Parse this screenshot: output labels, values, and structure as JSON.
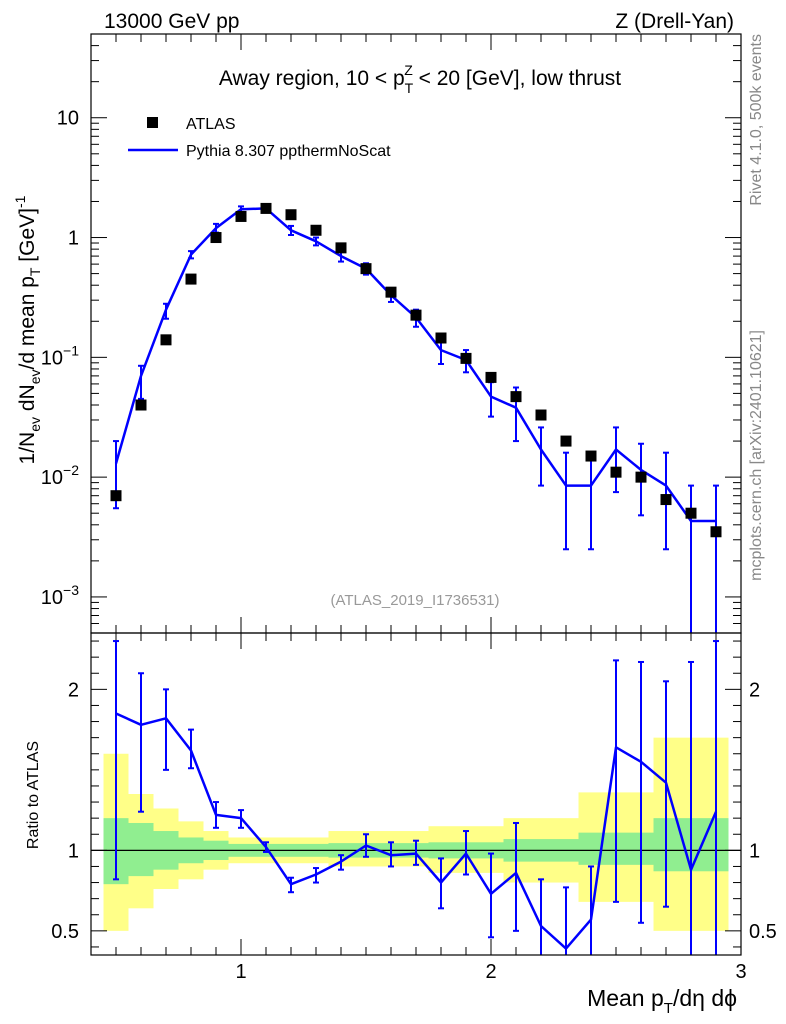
{
  "header": {
    "energy_label": "13000 GeV pp",
    "process_label": "Z (Drell-Yan)"
  },
  "side_labels": {
    "rivet": "Rivet 4.1.0,  500k events",
    "mcplots": "mcplots.cern.ch [arXiv:2401.10621]"
  },
  "colors": {
    "mc_line": "#0000ff",
    "data_marker": "#000000",
    "band_inner": "#90ee90",
    "band_outer": "#ffff88",
    "watermark": "#999999",
    "side_text": "#888888"
  },
  "chart_data": {
    "type": "line",
    "title": "Away region, 10 < p_T^Z < 20 [GeV], low thrust",
    "title_parts": {
      "prefix": "Away region, 10 < p",
      "sup": "Z",
      "sub": "T",
      "suffix": " < 20 [GeV], low thrust"
    },
    "analysis_id": "(ATLAS_2019_I1736531)",
    "xlabel": "Mean p_T/dη dϕ",
    "xlabel_parts": {
      "pre": "Mean p",
      "sub": "T",
      "post": "/dη dϕ"
    },
    "ylabel": "1/N_ev dN_ev/d mean p_T [GeV]^-1",
    "xlim": [
      0.4,
      3.0
    ],
    "ylim": [
      0.0005,
      50
    ],
    "yscale": "log",
    "x_ticks": [
      {
        "value": 1,
        "label": "1"
      },
      {
        "value": 2,
        "label": "2"
      },
      {
        "value": 3,
        "label": "3"
      }
    ],
    "y_ticks": [
      {
        "value": 0.001,
        "base": "10",
        "exp": "−3"
      },
      {
        "value": 0.01,
        "base": "10",
        "exp": "−2"
      },
      {
        "value": 0.1,
        "base": "10",
        "exp": "−1"
      },
      {
        "value": 1,
        "base": "1",
        "exp": ""
      },
      {
        "value": 10,
        "base": "10",
        "exp": ""
      }
    ],
    "legend": {
      "position": "top-left",
      "data_label": "ATLAS",
      "mc_label": "Pythia 8.307 ppthermNoScat"
    },
    "x": [
      0.5,
      0.6,
      0.7,
      0.8,
      0.9,
      1.0,
      1.1,
      1.2,
      1.3,
      1.4,
      1.5,
      1.6,
      1.7,
      1.8,
      1.9,
      2.0,
      2.1,
      2.2,
      2.3,
      2.4,
      2.5,
      2.6,
      2.7,
      2.8,
      2.9
    ],
    "series": [
      {
        "name": "ATLAS",
        "style": "markers",
        "values": [
          0.007,
          0.04,
          0.14,
          0.45,
          1.0,
          1.5,
          1.75,
          1.55,
          1.15,
          0.82,
          0.55,
          0.35,
          0.225,
          0.145,
          0.098,
          0.068,
          0.047,
          0.033,
          0.02,
          0.015,
          0.011,
          0.01,
          0.0065,
          0.005,
          0.0035
        ]
      },
      {
        "name": "Pythia 8.307 ppthermNoScat",
        "style": "line",
        "values": [
          0.013,
          0.07,
          0.25,
          0.72,
          1.2,
          1.72,
          1.75,
          1.15,
          0.93,
          0.7,
          0.55,
          0.33,
          0.215,
          0.115,
          0.095,
          0.047,
          0.038,
          0.017,
          0.0085,
          0.0085,
          0.017,
          0.0115,
          0.0085,
          0.0043,
          0.0043
        ],
        "err_low": [
          0.0055,
          0.045,
          0.21,
          0.67,
          1.1,
          1.62,
          1.68,
          1.05,
          0.86,
          0.63,
          0.49,
          0.29,
          0.18,
          0.088,
          0.075,
          0.032,
          0.02,
          0.0085,
          0.0025,
          0.0025,
          0.0075,
          0.0048,
          0.0025,
          0.0003,
          0.0003
        ],
        "err_high": [
          0.02,
          0.085,
          0.28,
          0.77,
          1.3,
          1.82,
          1.82,
          1.25,
          1.0,
          0.77,
          0.61,
          0.37,
          0.25,
          0.14,
          0.115,
          0.062,
          0.056,
          0.026,
          0.016,
          0.016,
          0.026,
          0.019,
          0.016,
          0.0085,
          0.0085
        ]
      }
    ],
    "ratio": {
      "ylabel": "Ratio to ATLAS",
      "ylim": [
        0.35,
        2.35
      ],
      "reference": 1.0,
      "y_ticks": [
        {
          "value": 0.5,
          "label": "0.5"
        },
        {
          "value": 1,
          "label": "1"
        },
        {
          "value": 2,
          "label": "2"
        }
      ],
      "values": [
        1.85,
        1.78,
        1.82,
        1.62,
        1.22,
        1.2,
        1.02,
        0.79,
        0.85,
        0.93,
        1.03,
        0.97,
        0.98,
        0.8,
        0.98,
        0.73,
        0.86,
        0.53,
        0.39,
        0.57,
        1.64,
        1.55,
        1.42,
        0.88,
        1.24
      ],
      "err_low": [
        0.82,
        1.24,
        1.5,
        1.51,
        1.14,
        1.14,
        0.99,
        0.74,
        0.8,
        0.88,
        0.96,
        0.9,
        0.91,
        0.64,
        0.85,
        0.46,
        0.5,
        0.25,
        0.12,
        0.19,
        0.68,
        0.55,
        0.65,
        0.1,
        0.1
      ],
      "err_high": [
        2.3,
        2.1,
        2.0,
        1.75,
        1.3,
        1.25,
        1.05,
        0.83,
        0.89,
        0.97,
        1.1,
        1.05,
        1.06,
        0.95,
        1.12,
        0.98,
        1.17,
        0.82,
        0.77,
        0.9,
        2.18,
        2.17,
        2.05,
        2.17,
        2.3
      ],
      "band_inner": [
        {
          "x0": 0.45,
          "x1": 0.55,
          "low": 0.79,
          "high": 1.2
        },
        {
          "x0": 0.55,
          "x1": 0.65,
          "low": 0.84,
          "high": 1.17
        },
        {
          "x0": 0.65,
          "x1": 0.75,
          "low": 0.88,
          "high": 1.12
        },
        {
          "x0": 0.75,
          "x1": 0.85,
          "low": 0.92,
          "high": 1.08
        },
        {
          "x0": 0.85,
          "x1": 0.95,
          "low": 0.94,
          "high": 1.06
        },
        {
          "x0": 0.95,
          "x1": 1.35,
          "low": 0.96,
          "high": 1.04
        },
        {
          "x0": 1.35,
          "x1": 1.75,
          "low": 0.955,
          "high": 1.045
        },
        {
          "x0": 1.75,
          "x1": 2.05,
          "low": 0.95,
          "high": 1.05
        },
        {
          "x0": 2.05,
          "x1": 2.35,
          "low": 0.93,
          "high": 1.07
        },
        {
          "x0": 2.35,
          "x1": 2.65,
          "low": 0.91,
          "high": 1.11
        },
        {
          "x0": 2.65,
          "x1": 2.95,
          "low": 0.87,
          "high": 1.2
        }
      ],
      "band_outer": [
        {
          "x0": 0.45,
          "x1": 0.55,
          "low": 0.5,
          "high": 1.6
        },
        {
          "x0": 0.55,
          "x1": 0.65,
          "low": 0.64,
          "high": 1.35
        },
        {
          "x0": 0.65,
          "x1": 0.75,
          "low": 0.76,
          "high": 1.26
        },
        {
          "x0": 0.75,
          "x1": 0.85,
          "low": 0.82,
          "high": 1.18
        },
        {
          "x0": 0.85,
          "x1": 0.95,
          "low": 0.88,
          "high": 1.12
        },
        {
          "x0": 0.95,
          "x1": 1.35,
          "low": 0.92,
          "high": 1.08
        },
        {
          "x0": 1.35,
          "x1": 1.75,
          "low": 0.9,
          "high": 1.12
        },
        {
          "x0": 1.75,
          "x1": 2.05,
          "low": 0.86,
          "high": 1.15
        },
        {
          "x0": 2.05,
          "x1": 2.35,
          "low": 0.8,
          "high": 1.2
        },
        {
          "x0": 2.35,
          "x1": 2.65,
          "low": 0.68,
          "high": 1.36
        },
        {
          "x0": 2.65,
          "x1": 2.95,
          "low": 0.5,
          "high": 1.7
        }
      ]
    }
  }
}
